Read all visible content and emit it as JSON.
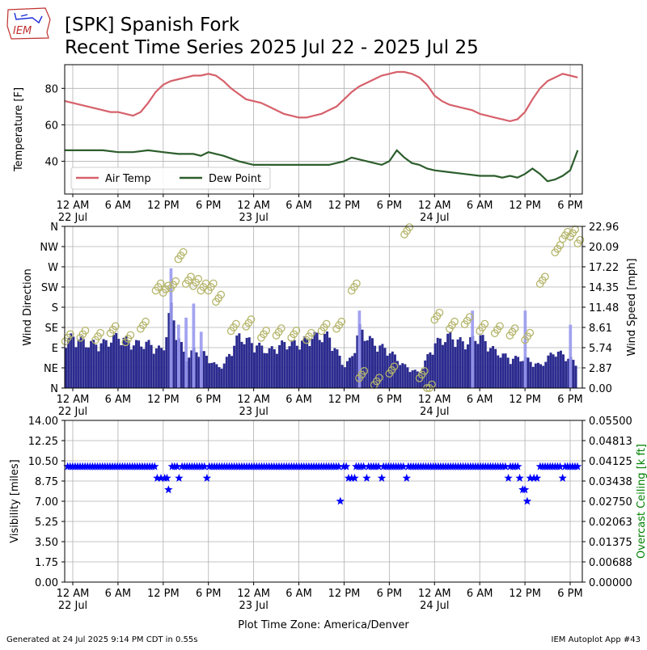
{
  "header": {
    "logo_text": "IEM",
    "title_line1": "[SPK] Spanish Fork",
    "title_line2": "Recent Time Series 2025 Jul 22 - 2025 Jul 25"
  },
  "footer": {
    "generated": "Generated at 24 Jul 2025 9:14 PM CDT in 0.55s",
    "app": "IEM Autoplot App #43",
    "xlabel": "Plot Time Zone: America/Denver"
  },
  "time_axis": {
    "start_hour": -2,
    "end_hour": 66,
    "ticks": [
      {
        "h": 0,
        "label": "12 AM",
        "sub": "22 Jul"
      },
      {
        "h": 6,
        "label": "6 AM",
        "sub": ""
      },
      {
        "h": 12,
        "label": "12 PM",
        "sub": ""
      },
      {
        "h": 18,
        "label": "6 PM",
        "sub": ""
      },
      {
        "h": 24,
        "label": "12 AM",
        "sub": "23 Jul"
      },
      {
        "h": 30,
        "label": "6 AM",
        "sub": ""
      },
      {
        "h": 36,
        "label": "12 PM",
        "sub": ""
      },
      {
        "h": 42,
        "label": "6 PM",
        "sub": ""
      },
      {
        "h": 48,
        "label": "12 AM",
        "sub": "24 Jul"
      },
      {
        "h": 54,
        "label": "6 AM",
        "sub": ""
      },
      {
        "h": 60,
        "label": "12 PM",
        "sub": ""
      },
      {
        "h": 66,
        "label": "6 PM",
        "sub": ""
      }
    ]
  },
  "chart_data": [
    {
      "type": "line",
      "name": "temperature",
      "ylabel": "Temperature [F]",
      "ylim": [
        22,
        93
      ],
      "yticks": [
        40,
        60,
        80
      ],
      "legend": "lower-left",
      "series": [
        {
          "name": "Air Temp",
          "color": "#d6616b",
          "points": [
            [
              -2,
              73
            ],
            [
              -1,
              73
            ],
            [
              0,
              72
            ],
            [
              1,
              71
            ],
            [
              2,
              70
            ],
            [
              3,
              69
            ],
            [
              4,
              68
            ],
            [
              5,
              67
            ],
            [
              6,
              67
            ],
            [
              7,
              66
            ],
            [
              8,
              65
            ],
            [
              9,
              67
            ],
            [
              10,
              72
            ],
            [
              11,
              78
            ],
            [
              12,
              82
            ],
            [
              13,
              84
            ],
            [
              14,
              85
            ],
            [
              15,
              86
            ],
            [
              16,
              87
            ],
            [
              17,
              87
            ],
            [
              18,
              88
            ],
            [
              19,
              87
            ],
            [
              20,
              84
            ],
            [
              21,
              80
            ],
            [
              22,
              77
            ],
            [
              23,
              74
            ],
            [
              24,
              73
            ],
            [
              25,
              72
            ],
            [
              26,
              70
            ],
            [
              27,
              68
            ],
            [
              28,
              66
            ],
            [
              29,
              65
            ],
            [
              30,
              64
            ],
            [
              31,
              64
            ],
            [
              32,
              65
            ],
            [
              33,
              66
            ],
            [
              34,
              68
            ],
            [
              35,
              70
            ],
            [
              36,
              74
            ],
            [
              37,
              78
            ],
            [
              38,
              81
            ],
            [
              39,
              83
            ],
            [
              40,
              85
            ],
            [
              41,
              87
            ],
            [
              42,
              88
            ],
            [
              43,
              89
            ],
            [
              44,
              89
            ],
            [
              45,
              88
            ],
            [
              46,
              86
            ],
            [
              47,
              82
            ],
            [
              48,
              76
            ],
            [
              49,
              73
            ],
            [
              50,
              71
            ],
            [
              51,
              70
            ],
            [
              52,
              69
            ],
            [
              53,
              68
            ],
            [
              54,
              66
            ],
            [
              55,
              65
            ],
            [
              56,
              64
            ],
            [
              57,
              63
            ],
            [
              58,
              62
            ],
            [
              59,
              63
            ],
            [
              60,
              67
            ],
            [
              61,
              74
            ],
            [
              62,
              80
            ],
            [
              63,
              84
            ],
            [
              64,
              86
            ],
            [
              65,
              88
            ],
            [
              66,
              87
            ],
            [
              67,
              86
            ]
          ]
        },
        {
          "name": "Dew Point",
          "color": "#2d5e2d",
          "points": [
            [
              -2,
              46
            ],
            [
              0,
              46
            ],
            [
              2,
              46
            ],
            [
              4,
              46
            ],
            [
              6,
              45
            ],
            [
              8,
              45
            ],
            [
              10,
              46
            ],
            [
              12,
              45
            ],
            [
              14,
              44
            ],
            [
              16,
              44
            ],
            [
              17,
              43
            ],
            [
              18,
              45
            ],
            [
              19,
              44
            ],
            [
              20,
              43
            ],
            [
              22,
              40
            ],
            [
              24,
              38
            ],
            [
              26,
              38
            ],
            [
              28,
              38
            ],
            [
              30,
              38
            ],
            [
              32,
              38
            ],
            [
              34,
              38
            ],
            [
              35,
              39
            ],
            [
              36,
              40
            ],
            [
              37,
              42
            ],
            [
              38,
              41
            ],
            [
              39,
              40
            ],
            [
              40,
              39
            ],
            [
              41,
              38
            ],
            [
              42,
              40
            ],
            [
              43,
              46
            ],
            [
              44,
              42
            ],
            [
              45,
              39
            ],
            [
              46,
              38
            ],
            [
              47,
              36
            ],
            [
              48,
              35
            ],
            [
              50,
              34
            ],
            [
              52,
              33
            ],
            [
              54,
              32
            ],
            [
              56,
              32
            ],
            [
              57,
              31
            ],
            [
              58,
              32
            ],
            [
              59,
              31
            ],
            [
              60,
              33
            ],
            [
              61,
              36
            ],
            [
              62,
              33
            ],
            [
              63,
              29
            ],
            [
              64,
              30
            ],
            [
              65,
              32
            ],
            [
              66,
              35
            ],
            [
              67,
              46
            ]
          ]
        }
      ]
    },
    {
      "type": "bar",
      "name": "wind",
      "ylabel_left": "Wind Direction",
      "ylabel_right": "Wind Speed [mph]",
      "dir_ticks": [
        "N",
        "NE",
        "E",
        "SE",
        "S",
        "SW",
        "W",
        "NW",
        "N"
      ],
      "speed_ticks": [
        "0.00",
        "2.87",
        "5.74",
        "8.61",
        "11.48",
        "14.35",
        "17.22",
        "20.09",
        "22.96"
      ],
      "speed_max": 22.96,
      "sustained_color": "#2b2b8f",
      "gust_color": "#9999f0",
      "direction_color": "#b5b56b",
      "sustained_speed": [
        [
          -1,
          6
        ],
        [
          0,
          7
        ],
        [
          2,
          6
        ],
        [
          4,
          6
        ],
        [
          6,
          7
        ],
        [
          8,
          6
        ],
        [
          10,
          6
        ],
        [
          12,
          5
        ],
        [
          13,
          11
        ],
        [
          14,
          7
        ],
        [
          15,
          4
        ],
        [
          16,
          5
        ],
        [
          17,
          5
        ],
        [
          18,
          4
        ],
        [
          19,
          3
        ],
        [
          20,
          3
        ],
        [
          22,
          7
        ],
        [
          24,
          6
        ],
        [
          26,
          5
        ],
        [
          28,
          6
        ],
        [
          30,
          6
        ],
        [
          32,
          7
        ],
        [
          34,
          7
        ],
        [
          35,
          5
        ],
        [
          36,
          3
        ],
        [
          37,
          4
        ],
        [
          38,
          8
        ],
        [
          40,
          6
        ],
        [
          42,
          5
        ],
        [
          44,
          3
        ],
        [
          46,
          2
        ],
        [
          48,
          6
        ],
        [
          50,
          7
        ],
        [
          52,
          6
        ],
        [
          54,
          7
        ],
        [
          56,
          5
        ],
        [
          58,
          4
        ],
        [
          60,
          4
        ],
        [
          62,
          3
        ],
        [
          64,
          5
        ],
        [
          66,
          4
        ],
        [
          67,
          3
        ]
      ],
      "gust_speed": [
        [
          13,
          17
        ],
        [
          14,
          9
        ],
        [
          15,
          10
        ],
        [
          16,
          12
        ],
        [
          17,
          8
        ],
        [
          38,
          11
        ],
        [
          53,
          11
        ],
        [
          60,
          11
        ],
        [
          66,
          9
        ]
      ],
      "direction_deg": [
        [
          -1,
          112
        ],
        [
          1,
          120
        ],
        [
          3,
          115
        ],
        [
          5,
          130
        ],
        [
          7,
          110
        ],
        [
          9,
          140
        ],
        [
          11,
          225
        ],
        [
          12,
          220
        ],
        [
          13,
          230
        ],
        [
          14,
          295
        ],
        [
          15,
          240
        ],
        [
          16,
          235
        ],
        [
          17,
          225
        ],
        [
          18,
          225
        ],
        [
          19,
          200
        ],
        [
          21,
          135
        ],
        [
          23,
          145
        ],
        [
          25,
          120
        ],
        [
          27,
          125
        ],
        [
          29,
          120
        ],
        [
          31,
          115
        ],
        [
          33,
          135
        ],
        [
          35,
          140
        ],
        [
          37,
          225
        ],
        [
          38,
          30
        ],
        [
          40,
          15
        ],
        [
          42,
          40
        ],
        [
          44,
          350
        ],
        [
          46,
          30
        ],
        [
          47,
          0
        ],
        [
          48,
          160
        ],
        [
          50,
          140
        ],
        [
          52,
          150
        ],
        [
          54,
          135
        ],
        [
          56,
          130
        ],
        [
          58,
          125
        ],
        [
          60,
          115
        ],
        [
          62,
          240
        ],
        [
          64,
          310
        ],
        [
          65,
          340
        ],
        [
          66,
          345
        ],
        [
          67,
          330
        ]
      ]
    },
    {
      "type": "scatter",
      "name": "visibility",
      "ylabel_left": "Visibility [miles]",
      "ylabel_right": "Overcast Ceiling [k ft]",
      "ylim": [
        0,
        14
      ],
      "yticks_left": [
        "0.00",
        "1.75",
        "3.50",
        "5.25",
        "7.00",
        "8.75",
        "10.50",
        "12.25",
        "14.00"
      ],
      "yticks_right": [
        "0.00000",
        "0.00688",
        "0.01375",
        "0.02063",
        "0.02750",
        "0.03438",
        "0.04125",
        "0.04813",
        "0.05500"
      ],
      "marker_color": "#0000ff",
      "ceiling_color": "#008000",
      "baseline_value": 10,
      "baseline_start": -2,
      "baseline_end": 67,
      "baseline_step": 0.33,
      "outliers": [
        [
          11.2,
          9
        ],
        [
          11.7,
          9
        ],
        [
          12.2,
          9
        ],
        [
          12.5,
          9
        ],
        [
          12.7,
          8
        ],
        [
          14.1,
          9
        ],
        [
          17.8,
          9
        ],
        [
          35.5,
          7
        ],
        [
          36.6,
          9
        ],
        [
          37.0,
          9
        ],
        [
          37.4,
          9
        ],
        [
          39.0,
          9
        ],
        [
          41.0,
          9
        ],
        [
          44.3,
          9
        ],
        [
          57.8,
          9
        ],
        [
          59.3,
          9
        ],
        [
          59.7,
          8
        ],
        [
          60.0,
          8
        ],
        [
          60.3,
          7
        ],
        [
          60.7,
          9
        ],
        [
          61.2,
          9
        ],
        [
          61.6,
          9
        ],
        [
          65.0,
          9
        ]
      ],
      "gap_hours": [
        11.2,
        11.7,
        12.2,
        12.5,
        12.7,
        14.1,
        17.8,
        35.5,
        36.6,
        37.0,
        37.4,
        39.0,
        41.0,
        44.3,
        57.8,
        59.3,
        59.7,
        60.0,
        60.3,
        60.7,
        61.2,
        61.6,
        65.0
      ]
    }
  ]
}
